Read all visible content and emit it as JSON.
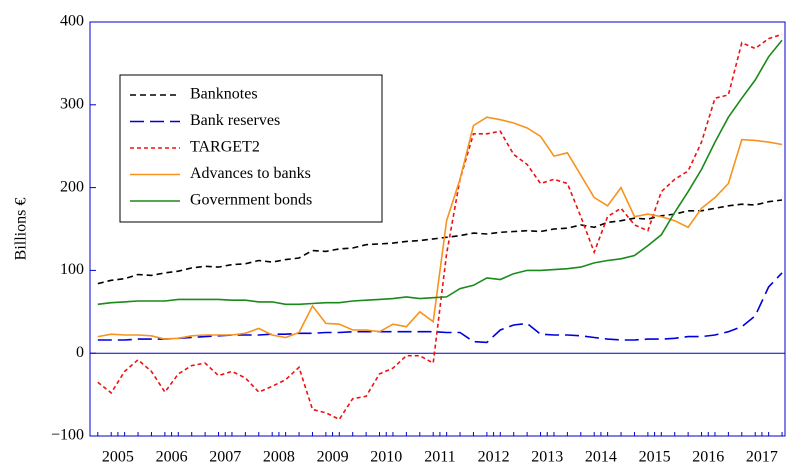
{
  "chart_data": {
    "type": "line",
    "y_label": "Billions €",
    "x": [
      2005.125,
      2005.375,
      2005.625,
      2005.875,
      2006.125,
      2006.375,
      2006.625,
      2006.875,
      2007.125,
      2007.375,
      2007.625,
      2007.875,
      2008.125,
      2008.375,
      2008.625,
      2008.875,
      2009.125,
      2009.375,
      2009.625,
      2009.875,
      2010.125,
      2010.375,
      2010.625,
      2010.875,
      2011.125,
      2011.375,
      2011.625,
      2011.875,
      2012.125,
      2012.375,
      2012.625,
      2012.875,
      2013.125,
      2013.375,
      2013.625,
      2013.875,
      2014.125,
      2014.375,
      2014.625,
      2014.875,
      2015.125,
      2015.375,
      2015.625,
      2015.875,
      2016.125,
      2016.375,
      2016.625,
      2016.875,
      2017.125,
      2017.375,
      2017.625,
      2017.875
    ],
    "series": [
      {
        "name": "Banknotes",
        "color": "#000000",
        "dash": "6,4",
        "values": [
          84,
          88,
          90,
          95,
          94,
          97,
          99,
          103,
          105,
          104,
          107,
          108,
          112,
          110,
          113,
          115,
          124,
          123,
          126,
          127,
          131,
          132,
          133,
          135,
          136,
          138,
          140,
          142,
          145,
          144,
          146,
          147,
          148,
          147,
          150,
          151,
          155,
          152,
          158,
          160,
          163,
          162,
          166,
          168,
          172,
          172,
          175,
          178,
          180,
          179,
          183,
          185
        ]
      },
      {
        "name": "Bank reserves",
        "color": "#0000dd",
        "dash": "14,6",
        "values": [
          16,
          16,
          16,
          17,
          17,
          17,
          18,
          19,
          20,
          21,
          22,
          22,
          22,
          23,
          23,
          24,
          24,
          25,
          25,
          26,
          26,
          26,
          26,
          26,
          26,
          26,
          25,
          25,
          14,
          13,
          28,
          34,
          36,
          23,
          22,
          22,
          21,
          19,
          17,
          16,
          16,
          17,
          17,
          18,
          20,
          20,
          22,
          26,
          32,
          45,
          80,
          97
        ]
      },
      {
        "name": "TARGET2",
        "color": "#ee1111",
        "dash": "4,3",
        "values": [
          -35,
          -48,
          -22,
          -8,
          -22,
          -47,
          -25,
          -15,
          -12,
          -27,
          -22,
          -30,
          -47,
          -40,
          -32,
          -17,
          -68,
          -72,
          -80,
          -55,
          -52,
          -25,
          -18,
          -3,
          -3,
          -12,
          120,
          210,
          265,
          265,
          268,
          240,
          228,
          205,
          210,
          205,
          165,
          122,
          165,
          175,
          155,
          148,
          195,
          210,
          220,
          255,
          308,
          312,
          375,
          368,
          380,
          385
        ]
      },
      {
        "name": "Advances to banks",
        "color": "#f7931e",
        "dash": "none",
        "values": [
          20,
          23,
          22,
          22,
          21,
          17,
          18,
          21,
          22,
          22,
          22,
          24,
          30,
          22,
          19,
          25,
          57,
          36,
          35,
          28,
          28,
          26,
          35,
          32,
          50,
          38,
          160,
          210,
          275,
          285,
          282,
          278,
          272,
          262,
          238,
          242,
          215,
          188,
          178,
          200,
          165,
          168,
          165,
          160,
          152,
          175,
          188,
          205,
          258,
          257,
          255,
          252
        ]
      },
      {
        "name": "Government bonds",
        "color": "#1a8a1a",
        "dash": "none",
        "values": [
          59,
          61,
          62,
          63,
          63,
          63,
          65,
          65,
          65,
          65,
          64,
          64,
          62,
          62,
          59,
          59,
          60,
          61,
          61,
          63,
          64,
          65,
          66,
          68,
          66,
          67,
          68,
          78,
          82,
          91,
          89,
          96,
          100,
          100,
          101,
          102,
          104,
          109,
          112,
          114,
          118,
          130,
          143,
          170,
          195,
          222,
          255,
          285,
          308,
          330,
          358,
          378
        ]
      }
    ],
    "xlim": [
      2004.98,
      2017.93
    ],
    "xticks": [
      {
        "value": 2005.5,
        "label": "2005"
      },
      {
        "value": 2006.5,
        "label": "2006"
      },
      {
        "value": 2007.5,
        "label": "2007"
      },
      {
        "value": 2008.5,
        "label": "2008"
      },
      {
        "value": 2009.5,
        "label": "2009"
      },
      {
        "value": 2010.5,
        "label": "2010"
      },
      {
        "value": 2011.5,
        "label": "2011"
      },
      {
        "value": 2012.5,
        "label": "2012"
      },
      {
        "value": 2013.5,
        "label": "2013"
      },
      {
        "value": 2014.5,
        "label": "2014"
      },
      {
        "value": 2015.5,
        "label": "2015"
      },
      {
        "value": 2016.5,
        "label": "2016"
      },
      {
        "value": 2017.5,
        "label": "2017"
      }
    ],
    "ylim": [
      -100,
      400
    ],
    "yticks": [
      {
        "value": -100,
        "label": "−100"
      },
      0,
      100,
      200,
      300,
      400
    ],
    "legend": "upper left",
    "frame_color": "#0000cc"
  }
}
